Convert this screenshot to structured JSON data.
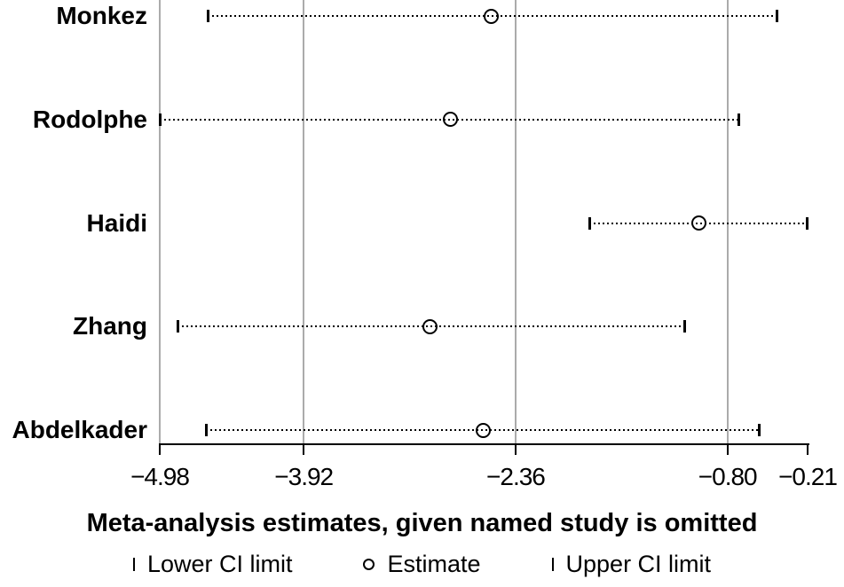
{
  "chart_data": {
    "type": "scatter",
    "subtype": "forest-plot-leave-one-out",
    "title": "Meta-analysis estimates, given named study is omitted",
    "xlim": [
      -4.98,
      -0.21
    ],
    "grid": "vertical-only",
    "legend_position": "bottom",
    "xticks": [
      {
        "value": -4.98,
        "label": "−4.98"
      },
      {
        "value": -3.92,
        "label": "−3.92"
      },
      {
        "value": -2.36,
        "label": "−2.36"
      },
      {
        "value": -0.8,
        "label": "−0.80"
      },
      {
        "value": -0.21,
        "label": "−0.21"
      }
    ],
    "gridline_values": [
      -4.98,
      -3.92,
      -2.36,
      -0.8
    ],
    "studies": [
      {
        "name": "Monkez",
        "lower": -4.63,
        "estimate": -2.54,
        "upper": -0.43
      },
      {
        "name": "Rodolphe",
        "lower": -4.98,
        "estimate": -2.84,
        "upper": -0.71
      },
      {
        "name": "Haidi",
        "lower": -1.82,
        "estimate": -1.01,
        "upper": -0.21
      },
      {
        "name": "Zhang",
        "lower": -4.85,
        "estimate": -2.99,
        "upper": -1.11
      },
      {
        "name": "Abdelkader",
        "lower": -4.64,
        "estimate": -2.6,
        "upper": -0.56
      }
    ],
    "legend": [
      {
        "marker": "tick",
        "label": "Lower CI limit"
      },
      {
        "marker": "circle",
        "label": "Estimate"
      },
      {
        "marker": "tick",
        "label": "Upper CI limit"
      }
    ],
    "colors": {
      "marker": "#000000",
      "gridline": "#ababab",
      "axis": "#000000",
      "text": "#000000",
      "background": "#ffffff"
    }
  }
}
